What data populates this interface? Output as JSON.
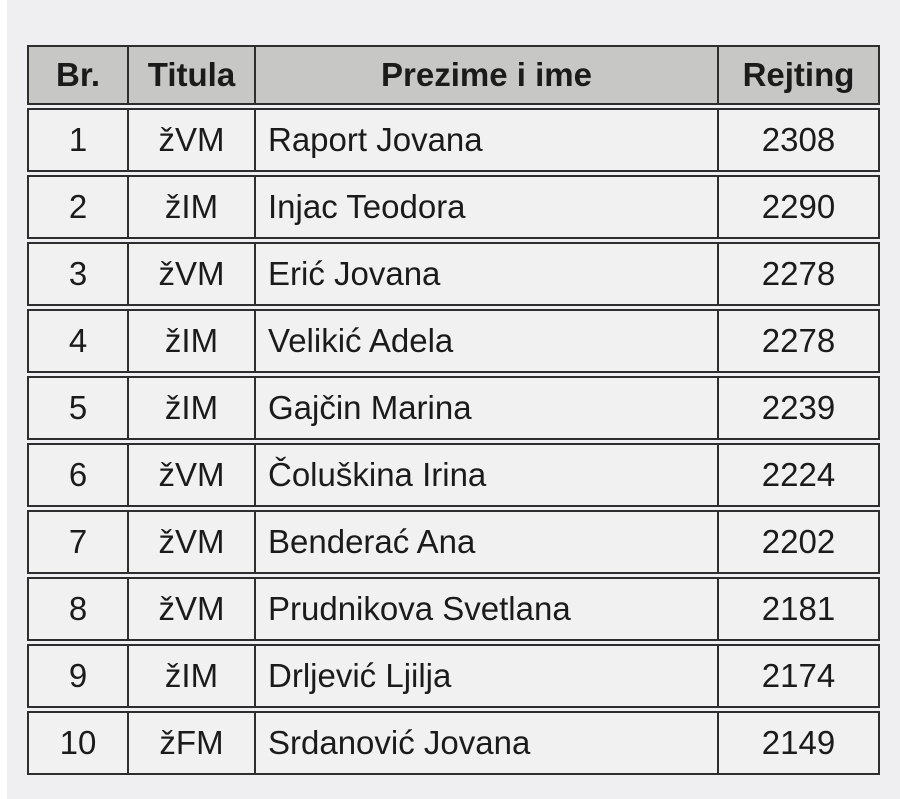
{
  "table": {
    "columns": [
      {
        "key": "br",
        "label": "Br."
      },
      {
        "key": "titula",
        "label": "Titula"
      },
      {
        "key": "prezime",
        "label": "Prezime i ime"
      },
      {
        "key": "rejting",
        "label": "Rejting"
      }
    ],
    "rows": [
      {
        "br": "1",
        "titula": "žVM",
        "prezime": "Raport Jovana",
        "rejting": "2308"
      },
      {
        "br": "2",
        "titula": "žIM",
        "prezime": "Injac Teodora",
        "rejting": "2290"
      },
      {
        "br": "3",
        "titula": "žVM",
        "prezime": "Erić Jovana",
        "rejting": "2278"
      },
      {
        "br": "4",
        "titula": "žIM",
        "prezime": "Velikić Adela",
        "rejting": "2278"
      },
      {
        "br": "5",
        "titula": "žIM",
        "prezime": "Gajčin Marina",
        "rejting": "2239"
      },
      {
        "br": "6",
        "titula": "žVM",
        "prezime": "Čoluškina Irina",
        "rejting": "2224"
      },
      {
        "br": "7",
        "titula": "žVM",
        "prezime": "Benderać Ana",
        "rejting": "2202"
      },
      {
        "br": "8",
        "titula": "žVM",
        "prezime": "Prudnikova Svetlana",
        "rejting": "2181"
      },
      {
        "br": "9",
        "titula": "žIM",
        "prezime": "Drljević Ljilja",
        "rejting": "2174"
      },
      {
        "br": "10",
        "titula": "žFM",
        "prezime": "Srdanović Jovana",
        "rejting": "2149"
      }
    ]
  },
  "colors": {
    "page_background": "#efeef0",
    "left_strip": "#ffffff",
    "header_background": "#c7c7c6",
    "row_background": "#f2f1f2",
    "border": "#2e2e2e",
    "text": "#1b1b1b"
  }
}
